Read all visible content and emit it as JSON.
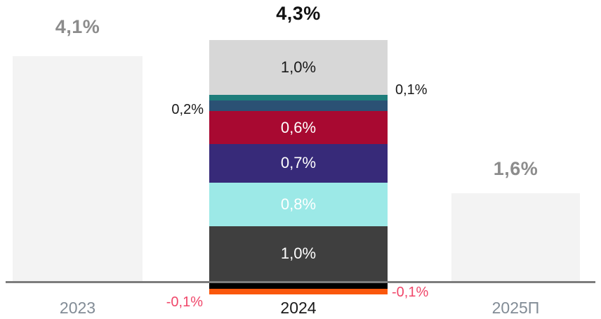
{
  "chart_data": {
    "type": "bar",
    "subtype": "stacked-contribution",
    "title": "",
    "categories": [
      "2023",
      "2024",
      "2025П"
    ],
    "ylim": [
      -0.2,
      4.6
    ],
    "grid": false,
    "legend": "none",
    "axis": {
      "baseline_color": "#7d7d7d"
    },
    "colors": {
      "plain_bar": "#f3f3f3",
      "big_label_gray": "#8c8c8c",
      "big_label_dark": "#111111",
      "tick_gray": "#828c96",
      "tick_dark": "#1a1a1a",
      "callout_dark": "#1a1a1a",
      "callout_negative_pink": "#f0476a"
    },
    "bars": [
      {
        "category": "2023",
        "total": 4.1,
        "total_label": "4,1%",
        "color": "#f3f3f3"
      },
      {
        "category": "2024",
        "total": 4.3,
        "total_label": "4,3%",
        "segments": [
          {
            "name": "top-gray",
            "value": 1.0,
            "label": "1,0%",
            "color": "#d7d7d7",
            "label_color": "#1a1a1a",
            "label_position": "inside"
          },
          {
            "name": "teal",
            "value": 0.1,
            "label": "0,1%",
            "color": "#1e7d7b",
            "label_color": "#1a1a1a",
            "label_position": "right"
          },
          {
            "name": "steel-blue",
            "value": 0.2,
            "label": "0,2%",
            "color": "#2b5174",
            "label_color": "#1a1a1a",
            "label_position": "left"
          },
          {
            "name": "crimson",
            "value": 0.6,
            "label": "0,6%",
            "color": "#a80931",
            "label_color": "#ffffff",
            "label_position": "inside"
          },
          {
            "name": "purple",
            "value": 0.7,
            "label": "0,7%",
            "color": "#372a79",
            "label_color": "#ffffff",
            "label_position": "inside"
          },
          {
            "name": "cyan",
            "value": 0.8,
            "label": "0,8%",
            "color": "#9ce9e7",
            "label_color": "#ffffff",
            "label_position": "inside"
          },
          {
            "name": "dark-gray",
            "value": 1.0,
            "label": "1,0%",
            "color": "#3f3f3f",
            "label_color": "#ffffff",
            "label_position": "inside"
          },
          {
            "name": "black",
            "value": -0.1,
            "label": "-0,1%",
            "color": "#000000",
            "label_color": "#f0476a",
            "label_position": "right-outside"
          },
          {
            "name": "orange",
            "value": -0.1,
            "label": "-0,1%",
            "color": "#fa570c",
            "label_color": "#f0476a",
            "label_position": "left-outside"
          }
        ]
      },
      {
        "category": "2025П",
        "total": 1.6,
        "total_label": "1,6%",
        "color": "#f3f3f3"
      }
    ]
  }
}
